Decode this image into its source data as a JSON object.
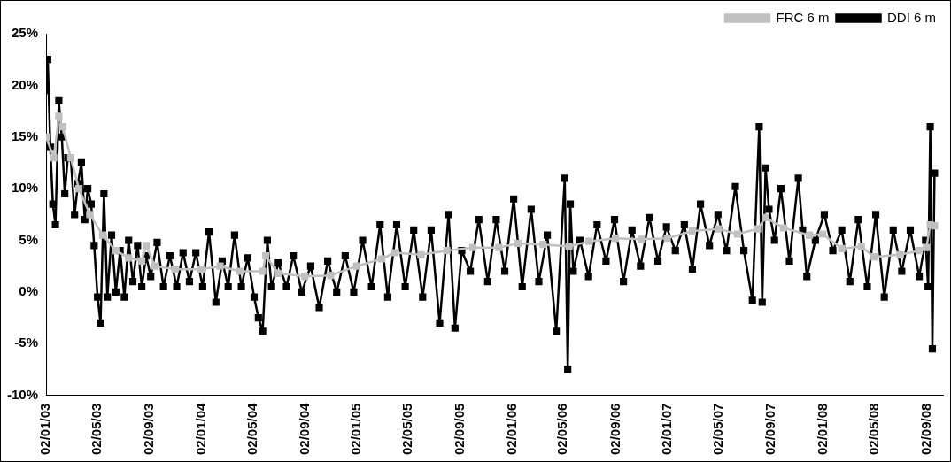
{
  "chart_data": {
    "type": "line",
    "legend": "top right",
    "marker": "square",
    "grid": false,
    "xlim": [
      "2003-01-02",
      "2008-10-10"
    ],
    "xticks": [
      {
        "value": "2003-01-02",
        "label": "02/01/03"
      },
      {
        "value": "2003-05-02",
        "label": "02/05/03"
      },
      {
        "value": "2003-09-02",
        "label": "02/09/03"
      },
      {
        "value": "2004-01-02",
        "label": "02/01/04"
      },
      {
        "value": "2004-05-02",
        "label": "02/05/04"
      },
      {
        "value": "2004-09-02",
        "label": "02/09/04"
      },
      {
        "value": "2005-01-02",
        "label": "02/01/05"
      },
      {
        "value": "2005-05-02",
        "label": "02/05/05"
      },
      {
        "value": "2005-09-02",
        "label": "02/09/05"
      },
      {
        "value": "2006-01-02",
        "label": "02/01/06"
      },
      {
        "value": "2006-05-02",
        "label": "02/05/06"
      },
      {
        "value": "2006-09-02",
        "label": "02/09/06"
      },
      {
        "value": "2007-01-02",
        "label": "02/01/07"
      },
      {
        "value": "2007-05-02",
        "label": "02/05/07"
      },
      {
        "value": "2007-09-02",
        "label": "02/09/07"
      },
      {
        "value": "2008-01-02",
        "label": "02/01/08"
      },
      {
        "value": "2008-05-02",
        "label": "02/05/08"
      },
      {
        "value": "2008-09-02",
        "label": "02/09/08"
      }
    ],
    "ylim": [
      -10,
      25
    ],
    "yticks": [
      {
        "value": -10,
        "label": "-10%"
      },
      {
        "value": -5,
        "label": "-5%"
      },
      {
        "value": 0,
        "label": "0%"
      },
      {
        "value": 5,
        "label": "5%"
      },
      {
        "value": 10,
        "label": "10%"
      },
      {
        "value": 15,
        "label": "15%"
      },
      {
        "value": 20,
        "label": "20%"
      },
      {
        "value": 25,
        "label": "25%"
      }
    ],
    "series": [
      {
        "name": "DDI 6 m",
        "color": "#000000",
        "x": [
          "2003-01-02",
          "2003-01-06",
          "2003-01-12",
          "2003-01-18",
          "2003-01-24",
          "2003-02-01",
          "2003-02-08",
          "2003-02-15",
          "2003-02-22",
          "2003-03-01",
          "2003-03-10",
          "2003-03-18",
          "2003-03-26",
          "2003-04-03",
          "2003-04-10",
          "2003-04-18",
          "2003-04-25",
          "2003-05-03",
          "2003-05-10",
          "2003-05-18",
          "2003-05-26",
          "2003-06-05",
          "2003-06-15",
          "2003-06-25",
          "2003-07-05",
          "2003-07-15",
          "2003-07-25",
          "2003-08-05",
          "2003-08-15",
          "2003-08-25",
          "2003-09-05",
          "2003-09-20",
          "2003-10-05",
          "2003-10-20",
          "2003-11-05",
          "2003-11-20",
          "2003-12-05",
          "2003-12-20",
          "2004-01-05",
          "2004-01-20",
          "2004-02-05",
          "2004-02-20",
          "2004-03-05",
          "2004-03-20",
          "2004-04-05",
          "2004-04-20",
          "2004-05-05",
          "2004-05-15",
          "2004-05-25",
          "2004-06-05",
          "2004-06-15",
          "2004-07-01",
          "2004-07-20",
          "2004-08-05",
          "2004-08-25",
          "2004-09-15",
          "2004-10-05",
          "2004-10-25",
          "2004-11-15",
          "2004-12-05",
          "2004-12-25",
          "2005-01-15",
          "2005-02-05",
          "2005-02-25",
          "2005-03-15",
          "2005-04-05",
          "2005-04-25",
          "2005-05-15",
          "2005-06-05",
          "2005-06-25",
          "2005-07-15",
          "2005-08-05",
          "2005-08-20",
          "2005-09-05",
          "2005-09-25",
          "2005-10-15",
          "2005-11-05",
          "2005-11-25",
          "2005-12-15",
          "2006-01-05",
          "2006-01-25",
          "2006-02-15",
          "2006-03-05",
          "2006-03-25",
          "2006-04-15",
          "2006-05-05",
          "2006-05-12",
          "2006-05-18",
          "2006-05-25",
          "2006-06-10",
          "2006-06-30",
          "2006-07-20",
          "2006-08-10",
          "2006-08-30",
          "2006-09-20",
          "2006-10-10",
          "2006-10-30",
          "2006-11-20",
          "2006-12-10",
          "2006-12-30",
          "2007-01-20",
          "2007-02-10",
          "2007-03-01",
          "2007-03-20",
          "2007-04-10",
          "2007-04-30",
          "2007-05-20",
          "2007-06-10",
          "2007-06-30",
          "2007-07-20",
          "2007-08-05",
          "2007-08-12",
          "2007-08-20",
          "2007-08-28",
          "2007-09-10",
          "2007-09-25",
          "2007-10-15",
          "2007-11-05",
          "2007-11-15",
          "2007-11-25",
          "2007-12-15",
          "2008-01-05",
          "2008-01-25",
          "2008-02-15",
          "2008-03-05",
          "2008-03-25",
          "2008-04-15",
          "2008-05-05",
          "2008-05-25",
          "2008-06-15",
          "2008-07-05",
          "2008-07-25",
          "2008-08-15",
          "2008-08-30",
          "2008-09-05",
          "2008-09-10",
          "2008-09-15",
          "2008-09-20"
        ],
        "values": [
          19.5,
          22.5,
          14,
          8.5,
          6.5,
          18.5,
          15,
          9.5,
          13,
          13,
          7.5,
          10.5,
          12.5,
          7,
          10,
          8.5,
          4.5,
          -0.5,
          -3,
          9.5,
          -0.5,
          5.5,
          0,
          4,
          -0.5,
          5,
          1,
          4.5,
          0.5,
          3.5,
          1.5,
          4.8,
          0.5,
          3.5,
          0.5,
          3.8,
          1,
          3.8,
          0.5,
          5.8,
          -1,
          3,
          0.5,
          5.5,
          0.5,
          3.3,
          -0.5,
          -2.5,
          -3.8,
          5,
          0.5,
          2.8,
          0.5,
          3.5,
          0,
          2.5,
          -1.5,
          3,
          0,
          3.5,
          0,
          5,
          0.5,
          6.5,
          -0.5,
          6.5,
          0.5,
          6,
          -0.5,
          6,
          -3,
          7.5,
          -3.5,
          4,
          2,
          7,
          1,
          7,
          2,
          9,
          0.5,
          8,
          1,
          5.5,
          -3.8,
          11,
          -7.5,
          8.5,
          2,
          5,
          1.5,
          6.5,
          3,
          7,
          1,
          6,
          2.5,
          7.2,
          3,
          6.3,
          4,
          6.5,
          2.2,
          8.5,
          4.5,
          7.5,
          4,
          10.2,
          4,
          -0.8,
          16,
          -1,
          12,
          8,
          5,
          10,
          3,
          11,
          6,
          1.5,
          5,
          7.5,
          4,
          6,
          1,
          7,
          0.5,
          7.5,
          -0.5,
          6,
          2,
          6,
          1.5,
          5,
          0.5,
          16,
          -5.5,
          11.5
        ]
      },
      {
        "name": "FRC 6 m",
        "color": "#c0c0c0",
        "x": [
          "2003-01-02",
          "2003-01-20",
          "2003-02-01",
          "2003-02-10",
          "2003-03-01",
          "2003-03-20",
          "2003-04-15",
          "2003-05-15",
          "2003-06-15",
          "2003-07-15",
          "2003-08-15",
          "2003-08-25",
          "2003-09-15",
          "2003-11-01",
          "2004-01-01",
          "2004-02-15",
          "2004-04-01",
          "2004-05-25",
          "2004-06-01",
          "2004-07-01",
          "2004-09-01",
          "2004-11-01",
          "2005-01-01",
          "2005-03-01",
          "2005-04-01",
          "2005-06-01",
          "2005-08-01",
          "2005-10-01",
          "2005-12-01",
          "2006-01-15",
          "2006-03-15",
          "2006-05-15",
          "2006-07-01",
          "2006-09-01",
          "2006-11-01",
          "2007-01-01",
          "2007-03-01",
          "2007-05-01",
          "2007-06-15",
          "2007-08-01",
          "2007-08-20",
          "2007-10-01",
          "2007-12-01",
          "2008-01-01",
          "2008-02-15",
          "2008-04-01",
          "2008-05-01",
          "2008-07-01",
          "2008-08-15",
          "2008-09-01",
          "2008-09-10",
          "2008-09-20"
        ],
        "values": [
          15,
          13,
          17,
          16,
          13,
          10,
          7.5,
          5.5,
          4,
          3.3,
          3,
          4.5,
          2.5,
          2.2,
          2.2,
          2.5,
          2,
          2,
          3.5,
          1.8,
          1.5,
          1.6,
          2.5,
          3.2,
          3.8,
          3.6,
          4,
          4.3,
          4.3,
          4.7,
          4.6,
          4.4,
          4.9,
          5.2,
          5.1,
          5.2,
          5.9,
          6.1,
          5.6,
          6.1,
          7.2,
          6.2,
          5.5,
          5.6,
          4.2,
          4.4,
          3.4,
          3.6,
          4,
          4.3,
          6.5,
          6.4
        ]
      }
    ]
  }
}
